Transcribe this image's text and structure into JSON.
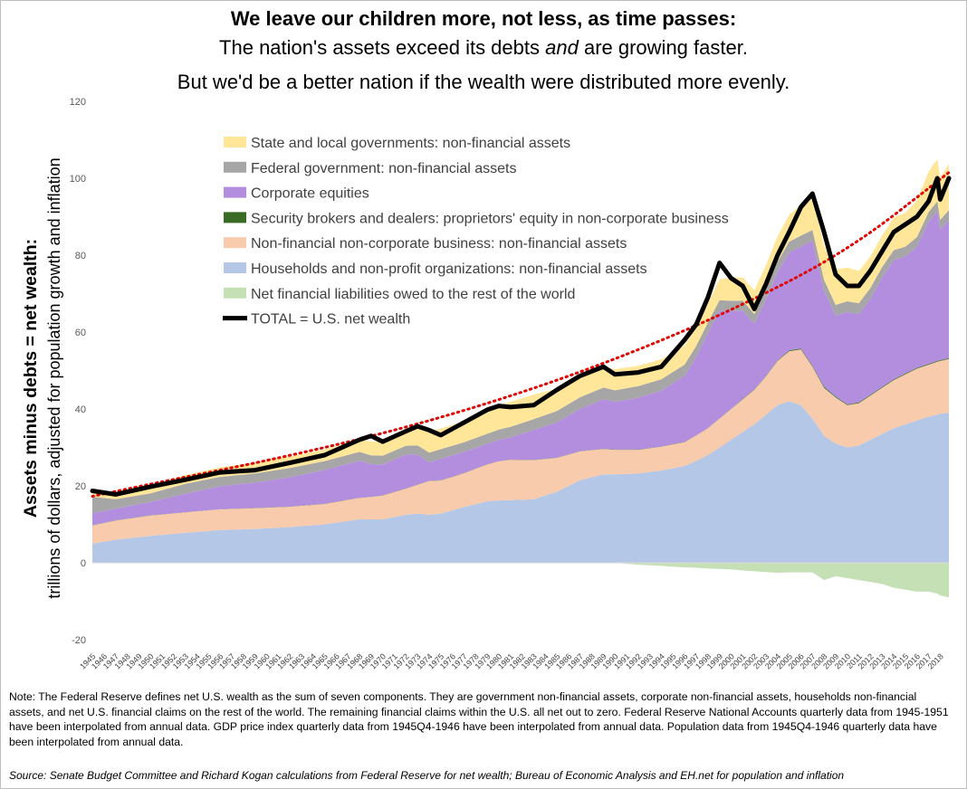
{
  "titles": {
    "line1": "We leave our children more, not less, as time passes:",
    "line2_before": "The nation's assets exceed its debts ",
    "line2_italic": "and",
    "line2_after": " are growing faster.",
    "line3": "But we'd be a better nation if the wealth were distributed more evenly."
  },
  "note": "Note:  The Federal Reserve defines net U.S. wealth as the sum of seven components.  They are government non-financial assets, corporate non-financial assets, households non-financial assets, and net U.S. financial claims on the rest of the world.  The remaining financial claims within the U.S. all net out to zero.  Federal Reserve National Accounts quarterly data from 1945-1951  have been interpolated from annual data.  GDP price index quarterly data from 1945Q4-1946  have been interpolated from annual data.  Population data from 1945Q4-1946  quarterly data have been interpolated from annual data.",
  "source": "Source: Senate Budget Committee and Richard Kogan calculations from Federal Reserve for net wealth; Bureau of Economic Analysis and EH.net for population and inflation",
  "chart_data": {
    "type": "area",
    "title": "We leave our children more, not less, as time passes",
    "ylabel_line1": "Assets minus debts = net wealth:",
    "ylabel_line2": "trillions of dollars, adjusted for population growth and inflation",
    "xlabel": "",
    "ylim": [
      -20,
      120
    ],
    "yticks": [
      -20,
      0,
      20,
      40,
      60,
      80,
      100,
      120
    ],
    "x_range": [
      1945,
      2018.75
    ],
    "x_tick_labels": [
      "1945",
      "1946",
      "1947",
      "1948",
      "1949",
      "1950",
      "1951",
      "1952",
      "1953",
      "1954",
      "1955",
      "1956",
      "1957",
      "1958",
      "1959",
      "1960",
      "1961",
      "1962",
      "1963",
      "1964",
      "1965",
      "1966",
      "1967",
      "1968",
      "1969",
      "1970",
      "1971",
      "1972",
      "1973",
      "1974",
      "1975",
      "1976",
      "1977",
      "1978",
      "1979",
      "1980",
      "1981",
      "1982",
      "1983",
      "1984",
      "1985",
      "1986",
      "1987",
      "1988",
      "1989",
      "1990",
      "1991",
      "1992",
      "1993",
      "1994",
      "1995",
      "1996",
      "1997",
      "1998",
      "1999",
      "2000",
      "2001",
      "2002",
      "2003",
      "2004",
      "2005",
      "2006",
      "2007",
      "2008",
      "2009",
      "2010",
      "2011",
      "2012",
      "2013",
      "2014",
      "2015",
      "2016",
      "2017",
      "2018"
    ],
    "stack_order": [
      "foreign",
      "households",
      "noncorp",
      "brokers",
      "corporate",
      "federal",
      "statelocal"
    ],
    "legend": [
      {
        "key": "statelocal",
        "label": "State and local governments: non-financial assets",
        "color": "#ffe699",
        "kind": "area"
      },
      {
        "key": "federal",
        "label": "Federal government: non-financial assets",
        "color": "#a6a6a6",
        "kind": "area"
      },
      {
        "key": "corporate",
        "label": "Corporate equities",
        "color": "#b48ede",
        "kind": "area"
      },
      {
        "key": "brokers",
        "label": "Security brokers and dealers: proprietors' equity in non-corporate business",
        "color": "#3a6b25",
        "kind": "area"
      },
      {
        "key": "noncorp",
        "label": "Non-financial non-corporate business: non-financial assets",
        "color": "#f8cbad",
        "kind": "area"
      },
      {
        "key": "households",
        "label": "Households and non-profit organizations: non-financial assets",
        "color": "#b4c7e7",
        "kind": "area"
      },
      {
        "key": "foreign",
        "label": "Net financial liabilities owed to the rest of the world",
        "color": "#c5e0b4",
        "kind": "area"
      },
      {
        "key": "total",
        "label": "TOTAL = U.S. net wealth",
        "color": "#000000",
        "kind": "line"
      }
    ],
    "x": [
      1945,
      1947,
      1950,
      1953,
      1956,
      1959,
      1962,
      1965,
      1968,
      1969,
      1970,
      1972,
      1973,
      1974,
      1975,
      1977,
      1979,
      1980,
      1981,
      1983,
      1985,
      1987,
      1989,
      1990,
      1992,
      1994,
      1996,
      1997,
      1998,
      1999,
      2000,
      2001,
      2002,
      2003,
      2004,
      2005,
      2006,
      2007,
      2008,
      2009,
      2010,
      2011,
      2012,
      2013,
      2014,
      2015,
      2016,
      2017,
      2017.75,
      2018,
      2018.75
    ],
    "series": [
      {
        "name": "households",
        "values": [
          5,
          6,
          7,
          7.8,
          8.5,
          8.8,
          9.3,
          10,
          11.3,
          11.3,
          11.3,
          12.5,
          12.8,
          12.5,
          12.8,
          14.5,
          16,
          16.2,
          16.3,
          16.5,
          18.5,
          21.5,
          23,
          23,
          23.2,
          24,
          25.2,
          26.5,
          28,
          30,
          32,
          34,
          36,
          38.5,
          41,
          42,
          41,
          37.5,
          33,
          31,
          30,
          30.5,
          32,
          33.5,
          35,
          36,
          37,
          38,
          38.5,
          38.8,
          39
        ]
      },
      {
        "name": "noncorp",
        "values": [
          4.7,
          5,
          5.3,
          5.3,
          5.4,
          5.4,
          5.3,
          5.3,
          5.6,
          5.8,
          6.2,
          6.8,
          7.5,
          8.8,
          8.6,
          8.8,
          9.6,
          10.2,
          10.5,
          10.2,
          8.8,
          7.5,
          6.6,
          6.4,
          6.2,
          6.2,
          6.2,
          6.6,
          7,
          7.5,
          8,
          8.5,
          9,
          10,
          11.5,
          13,
          14.5,
          13.5,
          12.5,
          12,
          11,
          11,
          11.5,
          12,
          12.5,
          13,
          13.5,
          13.5,
          13.8,
          13.7,
          14
        ]
      },
      {
        "name": "brokers",
        "values": [
          0.05,
          0.05,
          0.05,
          0.05,
          0.05,
          0.05,
          0.05,
          0.05,
          0.05,
          0.05,
          0.05,
          0.05,
          0.05,
          0.05,
          0.05,
          0.05,
          0.05,
          0.05,
          0.05,
          0.05,
          0.05,
          0.05,
          0.05,
          0.05,
          0.05,
          0.05,
          0.05,
          0.05,
          0.05,
          0.05,
          0.05,
          0.1,
          0.1,
          0.1,
          0.15,
          0.2,
          0.25,
          0.25,
          0.3,
          0.25,
          0.2,
          0.2,
          0.2,
          0.2,
          0.2,
          0.2,
          0.2,
          0.2,
          0.2,
          0.2,
          0.2
        ]
      },
      {
        "name": "corporate",
        "values": [
          3.2,
          3,
          3.5,
          4.8,
          6,
          6.6,
          7.6,
          8.8,
          9.6,
          8.5,
          8,
          8.8,
          7.8,
          4.8,
          5.6,
          5.5,
          5.3,
          5.5,
          5.8,
          7.8,
          9.2,
          11,
          12.9,
          12.4,
          13.5,
          14.5,
          17.2,
          20.5,
          24.7,
          28,
          25.5,
          23,
          17,
          20,
          23,
          25.5,
          26.5,
          32.5,
          25,
          21,
          24,
          23,
          25,
          28.5,
          31,
          30.5,
          31.5,
          37,
          39,
          34,
          36
        ]
      },
      {
        "name": "federal",
        "values": [
          4.2,
          2.5,
          2.2,
          2.6,
          2.4,
          2.4,
          2.4,
          2.3,
          2.3,
          2.3,
          2.3,
          2.3,
          2.4,
          2.5,
          2.5,
          2.5,
          2.6,
          2.7,
          2.7,
          2.8,
          2.9,
          3,
          3,
          3,
          3,
          3,
          2.9,
          2.8,
          2.7,
          2.7,
          2.6,
          2.6,
          2.6,
          2.6,
          2.7,
          2.8,
          2.8,
          2.8,
          2.8,
          2.8,
          2.8,
          2.8,
          2.8,
          2.7,
          2.6,
          2.5,
          2.5,
          2.5,
          2.5,
          2.5,
          2.5
        ]
      },
      {
        "name": "statelocal",
        "values": [
          1.5,
          1.6,
          1.8,
          2.2,
          2.5,
          2.8,
          3,
          3,
          3.3,
          3.5,
          3.8,
          4.2,
          4.6,
          5.3,
          5.4,
          5.5,
          6,
          6.4,
          6.5,
          6.4,
          5.8,
          5.4,
          5.5,
          5.5,
          5.3,
          5.2,
          5,
          5,
          5,
          5.5,
          6,
          6,
          6.2,
          6.2,
          6.6,
          7,
          8,
          8.8,
          9,
          9.2,
          8.8,
          8.4,
          8.2,
          8.2,
          8.5,
          8.8,
          9.5,
          10.5,
          11,
          11,
          12
        ]
      },
      {
        "name": "foreign",
        "values": [
          0,
          0,
          0,
          0,
          0,
          0,
          0,
          0,
          0,
          0,
          0,
          0,
          0,
          0,
          0,
          0,
          0,
          0,
          0,
          0,
          0,
          0,
          0,
          0,
          -0.5,
          -0.8,
          -1.2,
          -1.3,
          -1.5,
          -1.6,
          -1.7,
          -2,
          -2.2,
          -2.4,
          -2.6,
          -2.5,
          -2.5,
          -2.5,
          -4.5,
          -3.5,
          -4,
          -4.5,
          -5,
          -5.5,
          -6.5,
          -7,
          -7.5,
          -7.5,
          -8,
          -8.5,
          -9
        ]
      },
      {
        "name": "total",
        "values": [
          18.7,
          17.8,
          19.8,
          21.6,
          23.5,
          24.1,
          26,
          28,
          32,
          33,
          31.5,
          34.2,
          35.5,
          34.5,
          33.2,
          36.5,
          39.8,
          40.8,
          40.5,
          41,
          45,
          48.6,
          51,
          49,
          49.5,
          51,
          58,
          62,
          69,
          78,
          74,
          72,
          66,
          72.5,
          80,
          86,
          92.5,
          96,
          86,
          75,
          72,
          72,
          76,
          81,
          86,
          88,
          90,
          94,
          100,
          94.5,
          100
        ]
      },
      {
        "name": "trend",
        "values": [
          [
            1945,
            17.3
          ],
          [
            1950,
            20.5
          ],
          [
            1960,
            26.5
          ],
          [
            1970,
            33.5
          ],
          [
            1980,
            42.2
          ],
          [
            1990,
            52.8
          ],
          [
            2000,
            65.5
          ],
          [
            2010,
            81
          ],
          [
            2018.75,
            101.5
          ]
        ]
      }
    ]
  }
}
